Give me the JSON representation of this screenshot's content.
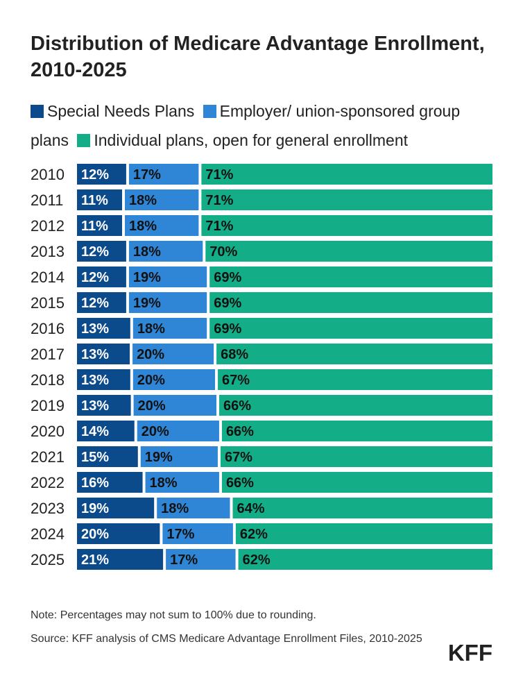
{
  "title": "Distribution of Medicare Advantage Enrollment, 2010-2025",
  "legend": [
    {
      "label": "Special Needs Plans",
      "color": "#0b4a8b"
    },
    {
      "label": "Employer/ union-sponsored group plans",
      "color": "#2f86d6"
    },
    {
      "label": "Individual plans, open for general enrollment",
      "color": "#13ad87"
    }
  ],
  "chart_data": {
    "type": "bar",
    "orientation": "horizontal",
    "stacked": "100%",
    "title": "Distribution of Medicare Advantage Enrollment, 2010-2025",
    "categories": [
      "2010",
      "2011",
      "2012",
      "2013",
      "2014",
      "2015",
      "2016",
      "2017",
      "2018",
      "2019",
      "2020",
      "2021",
      "2022",
      "2023",
      "2024",
      "2025"
    ],
    "series": [
      {
        "name": "Special Needs Plans",
        "values": [
          12,
          11,
          11,
          12,
          12,
          12,
          13,
          13,
          13,
          13,
          14,
          15,
          16,
          19,
          20,
          21
        ]
      },
      {
        "name": "Employer/ union-sponsored group plans",
        "values": [
          17,
          18,
          18,
          18,
          19,
          19,
          18,
          20,
          20,
          20,
          20,
          19,
          18,
          18,
          17,
          17
        ]
      },
      {
        "name": "Individual plans, open for general enrollment",
        "values": [
          71,
          71,
          71,
          70,
          69,
          69,
          69,
          68,
          67,
          66,
          66,
          67,
          66,
          64,
          62,
          62
        ]
      }
    ],
    "value_suffix": "%",
    "legend_position": "top"
  },
  "footer": {
    "note": "Note: Percentages may not sum to 100% due to rounding.",
    "source": "Source: KFF analysis of CMS Medicare Advantage Enrollment Files, 2010-2025",
    "logo": "KFF"
  }
}
